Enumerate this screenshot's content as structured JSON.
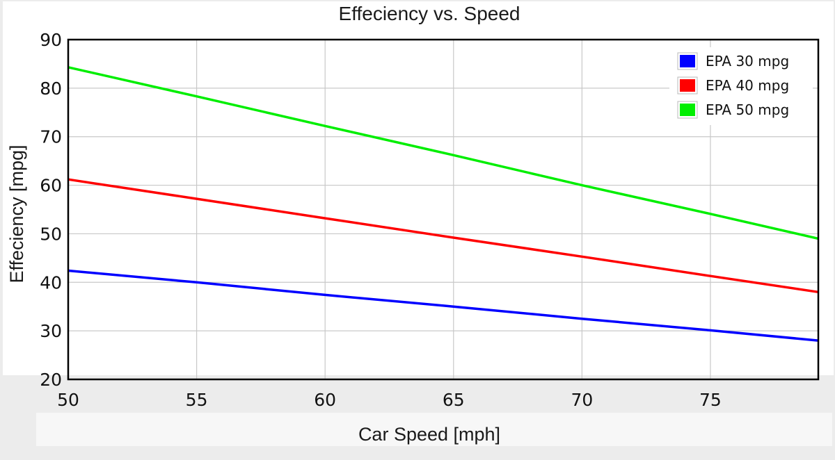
{
  "chart_data": {
    "type": "line",
    "title": "Effeciency vs. Speed",
    "xlabel": "Car Speed [mph]",
    "ylabel": "Effeciency [mpg]",
    "xlim": [
      50,
      79.2
    ],
    "ylim": [
      20,
      90
    ],
    "xticks": [
      50,
      55,
      60,
      65,
      70,
      75
    ],
    "yticks": [
      20,
      30,
      40,
      50,
      60,
      70,
      80,
      90
    ],
    "grid": true,
    "legend_position": "top-right",
    "series": [
      {
        "name": "EPA 30 mpg",
        "color": "#0000ff",
        "x": [
          50,
          55,
          60,
          65,
          70,
          75,
          79.2
        ],
        "y": [
          42.4,
          40.0,
          37.4,
          35.0,
          32.5,
          30.1,
          28.0
        ]
      },
      {
        "name": "EPA 40 mpg",
        "color": "#ff0000",
        "x": [
          50,
          55,
          60,
          65,
          70,
          75,
          79.2
        ],
        "y": [
          61.2,
          57.2,
          53.2,
          49.2,
          45.3,
          41.3,
          38.0
        ]
      },
      {
        "name": "EPA 50 mpg",
        "color": "#00ee00",
        "x": [
          50,
          55,
          60,
          65,
          70,
          75,
          79.2
        ],
        "y": [
          84.3,
          78.3,
          72.2,
          66.2,
          60.0,
          54.1,
          49.0
        ]
      }
    ]
  }
}
